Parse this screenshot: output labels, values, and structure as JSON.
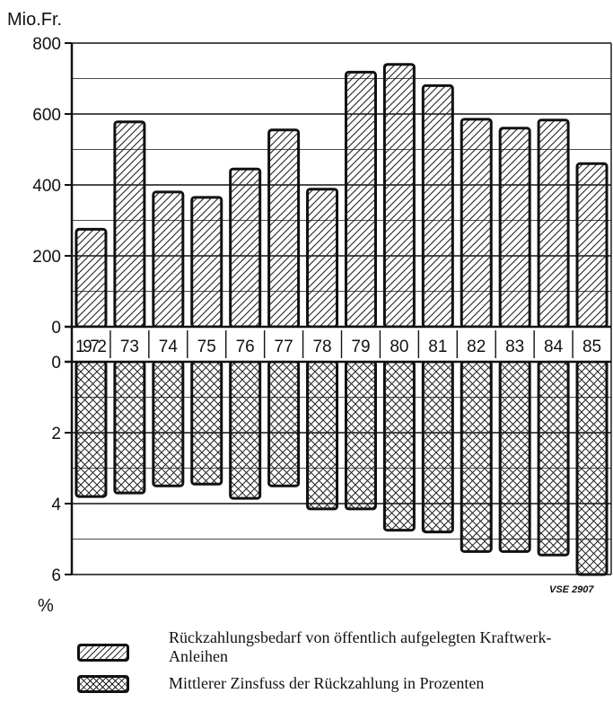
{
  "chart_data": {
    "type": "bar",
    "title": "",
    "categories": [
      "1972",
      "73",
      "74",
      "75",
      "76",
      "77",
      "78",
      "79",
      "80",
      "81",
      "82",
      "83",
      "84",
      "85"
    ],
    "series": [
      {
        "name": "Rückzahlungsbedarf von öffentlich aufgelegten Kraftwerk-Anleihen",
        "unit": "Mio.Fr.",
        "values": [
          275,
          578,
          380,
          365,
          445,
          555,
          388,
          718,
          740,
          680,
          585,
          560,
          583,
          460
        ],
        "ylim": [
          0,
          800
        ],
        "yticks": [
          "800",
          "600",
          "400",
          "200",
          "0"
        ],
        "pattern": "diagonal-hatch"
      },
      {
        "name": "Mittlerer Zinsfuss der Rückzahlung in Prozenten",
        "unit": "%",
        "values": [
          3.8,
          3.7,
          3.5,
          3.45,
          3.85,
          3.5,
          4.15,
          4.15,
          4.75,
          4.8,
          5.35,
          5.35,
          5.45,
          6.0
        ],
        "ylim": [
          0,
          6
        ],
        "yticks": [
          "0",
          "2",
          "4",
          "6"
        ],
        "pattern": "cross-hatch",
        "axis_direction": "downward"
      }
    ],
    "grid": true,
    "legend_position": "bottom",
    "source_code": "VSE 2907"
  },
  "colors": {
    "ink": "#111111",
    "background": "#ffffff"
  }
}
